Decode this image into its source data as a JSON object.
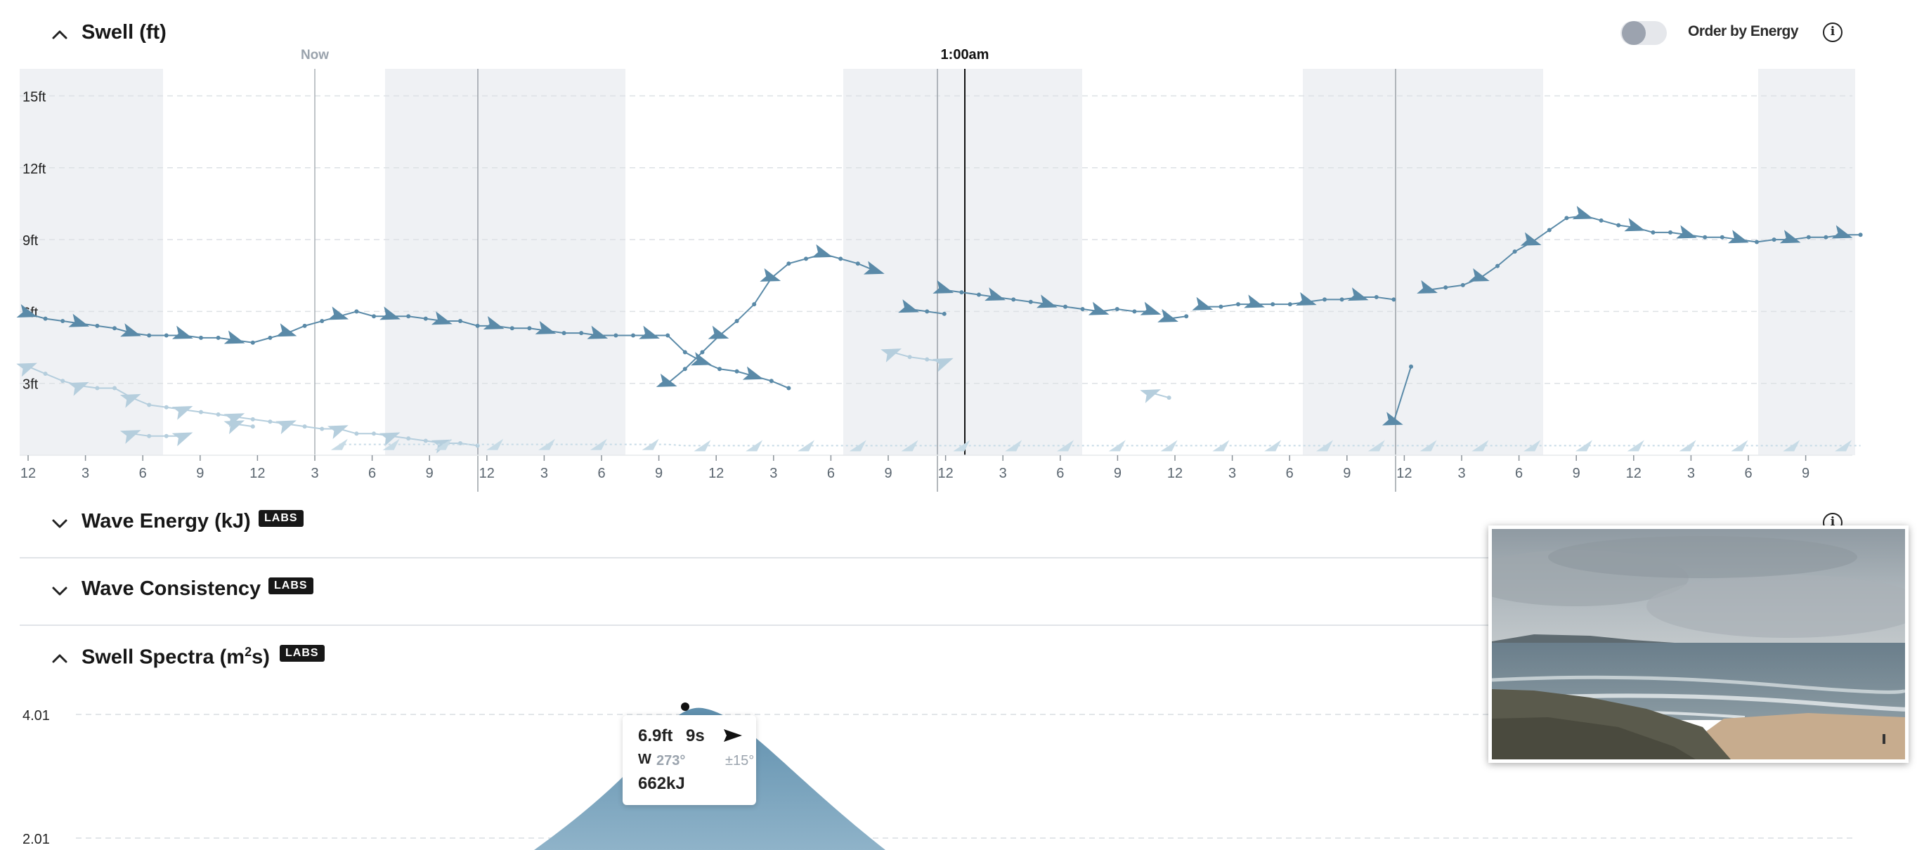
{
  "swell": {
    "title": "Swell (ft)",
    "order_label": "Order by Energy",
    "now_label": "Now",
    "cursor_label": "1:00am"
  },
  "energy": {
    "title": "Wave Energy (kJ)",
    "badge": "LABS"
  },
  "consistency": {
    "title": "Wave Consistency",
    "badge": "LABS"
  },
  "spectra": {
    "title_main": "Swell Spectra (m",
    "title_sup": "2",
    "title_end": "s)",
    "badge": "LABS",
    "ticks": [
      "4.01",
      "2.01"
    ]
  },
  "tooltip": {
    "height": "6.9ft",
    "period": "9s",
    "dir": "W",
    "deg": "273°",
    "spread": "±15°",
    "energy": "662kJ"
  },
  "colors": {
    "primary": "#5a8aa8",
    "secondary": "#b5cedd",
    "night": "#eff1f4",
    "tertiary": "#c7dbe6"
  },
  "chart_data": {
    "type": "line",
    "y_ticks": [
      "15ft",
      "12ft",
      "9ft",
      "6ft",
      "3ft"
    ],
    "ylim": [
      0,
      16
    ],
    "x_ticks": [
      "12",
      "3",
      "6",
      "9",
      "12",
      "3",
      "6",
      "9",
      "12",
      "3",
      "6",
      "9",
      "12",
      "3",
      "6",
      "9",
      "12",
      "3",
      "6",
      "9",
      "12",
      "3",
      "6",
      "9",
      "12",
      "3",
      "6",
      "9",
      "12",
      "3",
      "6",
      "9"
    ],
    "x_hours_step": 3,
    "series": [
      {
        "role": "primary",
        "segments": [
          [
            [
              0,
              5.9
            ],
            [
              1,
              5.7
            ],
            [
              2,
              5.6
            ],
            [
              3,
              5.5
            ],
            [
              4,
              5.4
            ],
            [
              5,
              5.3
            ],
            [
              6,
              5.1
            ],
            [
              7,
              5.0
            ],
            [
              8,
              5.0
            ],
            [
              9,
              5.0
            ],
            [
              10,
              4.9
            ],
            [
              11,
              4.9
            ],
            [
              12,
              4.8
            ],
            [
              13,
              4.7
            ],
            [
              14,
              4.9
            ],
            [
              15,
              5.1
            ],
            [
              16,
              5.4
            ],
            [
              17,
              5.6
            ],
            [
              18,
              5.8
            ],
            [
              19,
              6.0
            ],
            [
              20,
              5.8
            ],
            [
              21,
              5.8
            ],
            [
              22,
              5.8
            ],
            [
              23,
              5.7
            ],
            [
              24,
              5.6
            ],
            [
              25,
              5.6
            ],
            [
              26,
              5.4
            ],
            [
              27,
              5.4
            ],
            [
              28,
              5.3
            ],
            [
              29,
              5.3
            ],
            [
              30,
              5.2
            ],
            [
              31,
              5.1
            ],
            [
              32,
              5.1
            ],
            [
              33,
              5.0
            ],
            [
              34,
              5.0
            ],
            [
              35,
              5.0
            ],
            [
              36,
              5.0
            ],
            [
              37,
              5.0
            ],
            [
              38,
              4.3
            ],
            [
              39,
              3.9
            ],
            [
              40,
              3.6
            ],
            [
              41,
              3.5
            ],
            [
              42,
              3.3
            ],
            [
              43,
              3.1
            ],
            [
              44,
              2.8
            ]
          ],
          [
            [
              37,
              3.0
            ],
            [
              38,
              3.6
            ],
            [
              39,
              4.3
            ],
            [
              40,
              5.0
            ],
            [
              41,
              5.6
            ],
            [
              42,
              6.3
            ],
            [
              43,
              7.4
            ],
            [
              44,
              8.0
            ],
            [
              45,
              8.2
            ],
            [
              46,
              8.4
            ],
            [
              47,
              8.2
            ],
            [
              48,
              8.0
            ],
            [
              49,
              7.7
            ]
          ],
          [
            [
              51,
              6.1
            ],
            [
              52,
              6.0
            ],
            [
              53,
              5.9
            ]
          ],
          [
            [
              53,
              6.9
            ],
            [
              54,
              6.8
            ],
            [
              55,
              6.7
            ],
            [
              56,
              6.6
            ],
            [
              57,
              6.5
            ],
            [
              58,
              6.4
            ],
            [
              59,
              6.3
            ],
            [
              60,
              6.2
            ],
            [
              61,
              6.1
            ],
            [
              62,
              6.0
            ],
            [
              63,
              6.1
            ],
            [
              64,
              6.0
            ],
            [
              65,
              6.0
            ]
          ],
          [
            [
              66,
              5.7
            ],
            [
              67,
              5.8
            ]
          ],
          [
            [
              68,
              6.2
            ],
            [
              69,
              6.2
            ],
            [
              70,
              6.3
            ],
            [
              71,
              6.3
            ],
            [
              72,
              6.3
            ],
            [
              73,
              6.3
            ],
            [
              74,
              6.4
            ],
            [
              75,
              6.5
            ],
            [
              76,
              6.5
            ],
            [
              77,
              6.6
            ],
            [
              78,
              6.6
            ],
            [
              79,
              6.5
            ]
          ],
          [
            [
              79,
              1.4
            ],
            [
              80,
              3.7
            ]
          ],
          [
            [
              81,
              6.9
            ],
            [
              82,
              7.0
            ],
            [
              83,
              7.1
            ],
            [
              84,
              7.4
            ],
            [
              85,
              7.9
            ],
            [
              86,
              8.5
            ],
            [
              87,
              8.9
            ],
            [
              88,
              9.4
            ],
            [
              89,
              9.9
            ],
            [
              90,
              10.0
            ],
            [
              91,
              9.8
            ],
            [
              92,
              9.6
            ],
            [
              93,
              9.5
            ],
            [
              94,
              9.3
            ],
            [
              95,
              9.3
            ],
            [
              96,
              9.2
            ],
            [
              97,
              9.1
            ],
            [
              98,
              9.1
            ],
            [
              99,
              9.0
            ],
            [
              100,
              8.9
            ],
            [
              101,
              9.0
            ],
            [
              102,
              9.0
            ],
            [
              103,
              9.1
            ],
            [
              104,
              9.1
            ],
            [
              105,
              9.2
            ],
            [
              106,
              9.2
            ]
          ]
        ]
      },
      {
        "role": "secondary",
        "segments": [
          [
            [
              0,
              3.7
            ],
            [
              1,
              3.4
            ],
            [
              2,
              3.1
            ],
            [
              3,
              2.9
            ],
            [
              4,
              2.8
            ],
            [
              5,
              2.8
            ],
            [
              6,
              2.4
            ],
            [
              7,
              2.1
            ],
            [
              8,
              2.0
            ],
            [
              9,
              1.9
            ],
            [
              10,
              1.8
            ],
            [
              11,
              1.7
            ],
            [
              12,
              1.6
            ],
            [
              13,
              1.5
            ],
            [
              14,
              1.4
            ],
            [
              15,
              1.3
            ],
            [
              16,
              1.2
            ],
            [
              17,
              1.1
            ],
            [
              18,
              1.1
            ],
            [
              19,
              0.9
            ],
            [
              20,
              0.9
            ],
            [
              21,
              0.8
            ],
            [
              22,
              0.7
            ],
            [
              23,
              0.6
            ],
            [
              24,
              0.5
            ],
            [
              25,
              0.5
            ],
            [
              26,
              0.4
            ]
          ],
          [
            [
              6,
              0.9
            ],
            [
              7,
              0.8
            ],
            [
              8,
              0.8
            ],
            [
              9,
              0.8
            ]
          ],
          [
            [
              12,
              1.3
            ],
            [
              13,
              1.2
            ]
          ],
          [
            [
              50,
              4.3
            ],
            [
              51,
              4.1
            ],
            [
              52,
              4.0
            ],
            [
              53,
              3.9
            ]
          ],
          [
            [
              65,
              2.6
            ],
            [
              66,
              2.4
            ]
          ]
        ]
      }
    ]
  }
}
